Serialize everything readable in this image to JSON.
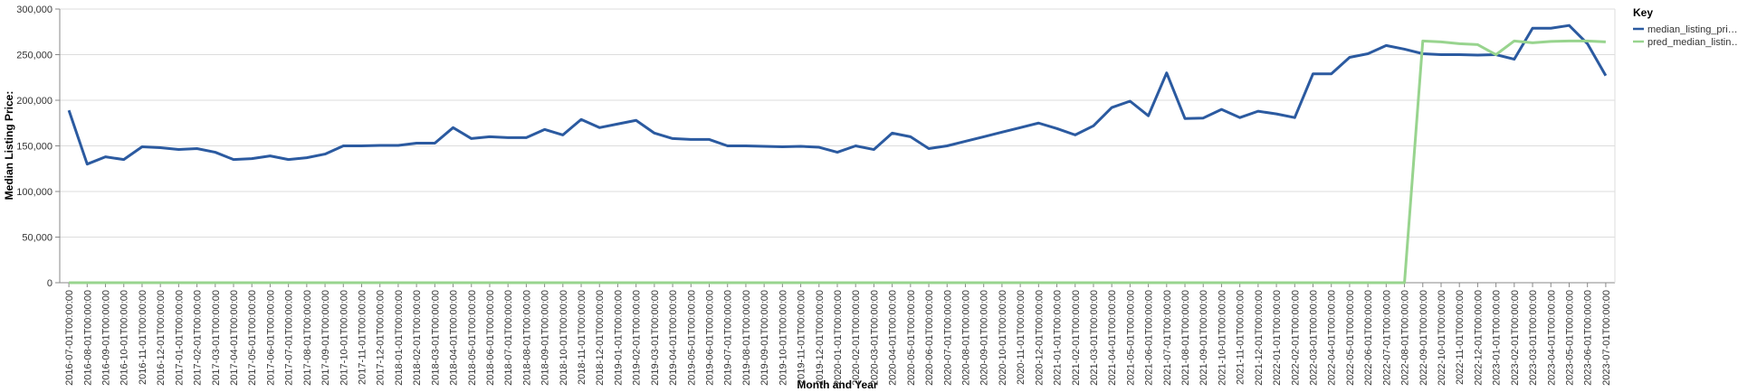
{
  "chart_data": {
    "type": "line",
    "x_label": "Month and Year",
    "y_label": "Median Listing Price:",
    "legend_title": "Key",
    "legend": "top-right",
    "grid": true,
    "categories": [
      "2016-07-01T00:00:00",
      "2016-08-01T00:00:00",
      "2016-09-01T00:00:00",
      "2016-10-01T00:00:00",
      "2016-11-01T00:00:00",
      "2016-12-01T00:00:00",
      "2017-01-01T00:00:00",
      "2017-02-01T00:00:00",
      "2017-03-01T00:00:00",
      "2017-04-01T00:00:00",
      "2017-05-01T00:00:00",
      "2017-06-01T00:00:00",
      "2017-07-01T00:00:00",
      "2017-08-01T00:00:00",
      "2017-09-01T00:00:00",
      "2017-10-01T00:00:00",
      "2017-11-01T00:00:00",
      "2017-12-01T00:00:00",
      "2018-01-01T00:00:00",
      "2018-02-01T00:00:00",
      "2018-03-01T00:00:00",
      "2018-04-01T00:00:00",
      "2018-05-01T00:00:00",
      "2018-06-01T00:00:00",
      "2018-07-01T00:00:00",
      "2018-08-01T00:00:00",
      "2018-09-01T00:00:00",
      "2018-10-01T00:00:00",
      "2018-11-01T00:00:00",
      "2018-12-01T00:00:00",
      "2019-01-01T00:00:00",
      "2019-02-01T00:00:00",
      "2019-03-01T00:00:00",
      "2019-04-01T00:00:00",
      "2019-05-01T00:00:00",
      "2019-06-01T00:00:00",
      "2019-07-01T00:00:00",
      "2019-08-01T00:00:00",
      "2019-09-01T00:00:00",
      "2019-10-01T00:00:00",
      "2019-11-01T00:00:00",
      "2019-12-01T00:00:00",
      "2020-01-01T00:00:00",
      "2020-02-01T00:00:00",
      "2020-03-01T00:00:00",
      "2020-04-01T00:00:00",
      "2020-05-01T00:00:00",
      "2020-06-01T00:00:00",
      "2020-07-01T00:00:00",
      "2020-08-01T00:00:00",
      "2020-09-01T00:00:00",
      "2020-10-01T00:00:00",
      "2020-11-01T00:00:00",
      "2020-12-01T00:00:00",
      "2021-01-01T00:00:00",
      "2021-02-01T00:00:00",
      "2021-03-01T00:00:00",
      "2021-04-01T00:00:00",
      "2021-05-01T00:00:00",
      "2021-06-01T00:00:00",
      "2021-07-01T00:00:00",
      "2021-08-01T00:00:00",
      "2021-09-01T00:00:00",
      "2021-10-01T00:00:00",
      "2021-11-01T00:00:00",
      "2021-12-01T00:00:00",
      "2022-01-01T00:00:00",
      "2022-02-01T00:00:00",
      "2022-03-01T00:00:00",
      "2022-04-01T00:00:00",
      "2022-05-01T00:00:00",
      "2022-06-01T00:00:00",
      "2022-07-01T00:00:00",
      "2022-08-01T00:00:00",
      "2022-09-01T00:00:00",
      "2022-10-01T00:00:00",
      "2022-11-01T00:00:00",
      "2022-12-01T00:00:00",
      "2023-01-01T00:00:00",
      "2023-02-01T00:00:00",
      "2023-03-01T00:00:00",
      "2023-04-01T00:00:00",
      "2023-05-01T00:00:00",
      "2023-06-01T00:00:00",
      "2023-07-01T00:00:00"
    ],
    "series": [
      {
        "name": "median_listing_pri…",
        "color": "#2b5aa0",
        "values": [
          189000,
          130000,
          138000,
          135000,
          149000,
          148000,
          146000,
          147000,
          143000,
          135000,
          136000,
          139000,
          135000,
          137000,
          141000,
          150000,
          150000,
          150500,
          150500,
          153000,
          153000,
          170000,
          158000,
          160000,
          159000,
          159000,
          168000,
          162000,
          179000,
          170000,
          174000,
          178000,
          164000,
          158000,
          157000,
          157000,
          150000,
          150000,
          149500,
          149000,
          149500,
          148500,
          143000,
          150000,
          146000,
          164000,
          160000,
          147000,
          150000,
          155000,
          160000,
          165000,
          170000,
          175000,
          169000,
          162000,
          172000,
          192000,
          199000,
          183000,
          230000,
          180000,
          180500,
          190000,
          181000,
          188000,
          185000,
          181000,
          229000,
          229000,
          247000,
          251000,
          260000,
          256000,
          251000,
          250000,
          250000,
          249500,
          250000,
          245000,
          279000,
          279000,
          282000,
          262000,
          227000
        ]
      },
      {
        "name": "pred_median_listin…",
        "color": "#98d48e",
        "values": [
          0,
          0,
          0,
          0,
          0,
          0,
          0,
          0,
          0,
          0,
          0,
          0,
          0,
          0,
          0,
          0,
          0,
          0,
          0,
          0,
          0,
          0,
          0,
          0,
          0,
          0,
          0,
          0,
          0,
          0,
          0,
          0,
          0,
          0,
          0,
          0,
          0,
          0,
          0,
          0,
          0,
          0,
          0,
          0,
          0,
          0,
          0,
          0,
          0,
          0,
          0,
          0,
          0,
          0,
          0,
          0,
          0,
          0,
          0,
          0,
          0,
          0,
          0,
          0,
          0,
          0,
          0,
          0,
          0,
          0,
          0,
          0,
          0,
          0,
          265000,
          264000,
          262000,
          261000,
          250000,
          265000,
          263000,
          264500,
          265000,
          265000,
          264000
        ]
      }
    ],
    "ylim": [
      0,
      300000
    ],
    "yticks": [
      0,
      {
        "value": 50000,
        "label": "50,000"
      },
      {
        "value": 100000,
        "label": "100,000"
      },
      {
        "value": 150000,
        "label": "150,000"
      },
      {
        "value": 200000,
        "label": "200,000"
      },
      {
        "value": 250000,
        "label": "250,000"
      },
      {
        "value": 300000,
        "label": "300,000"
      }
    ]
  }
}
